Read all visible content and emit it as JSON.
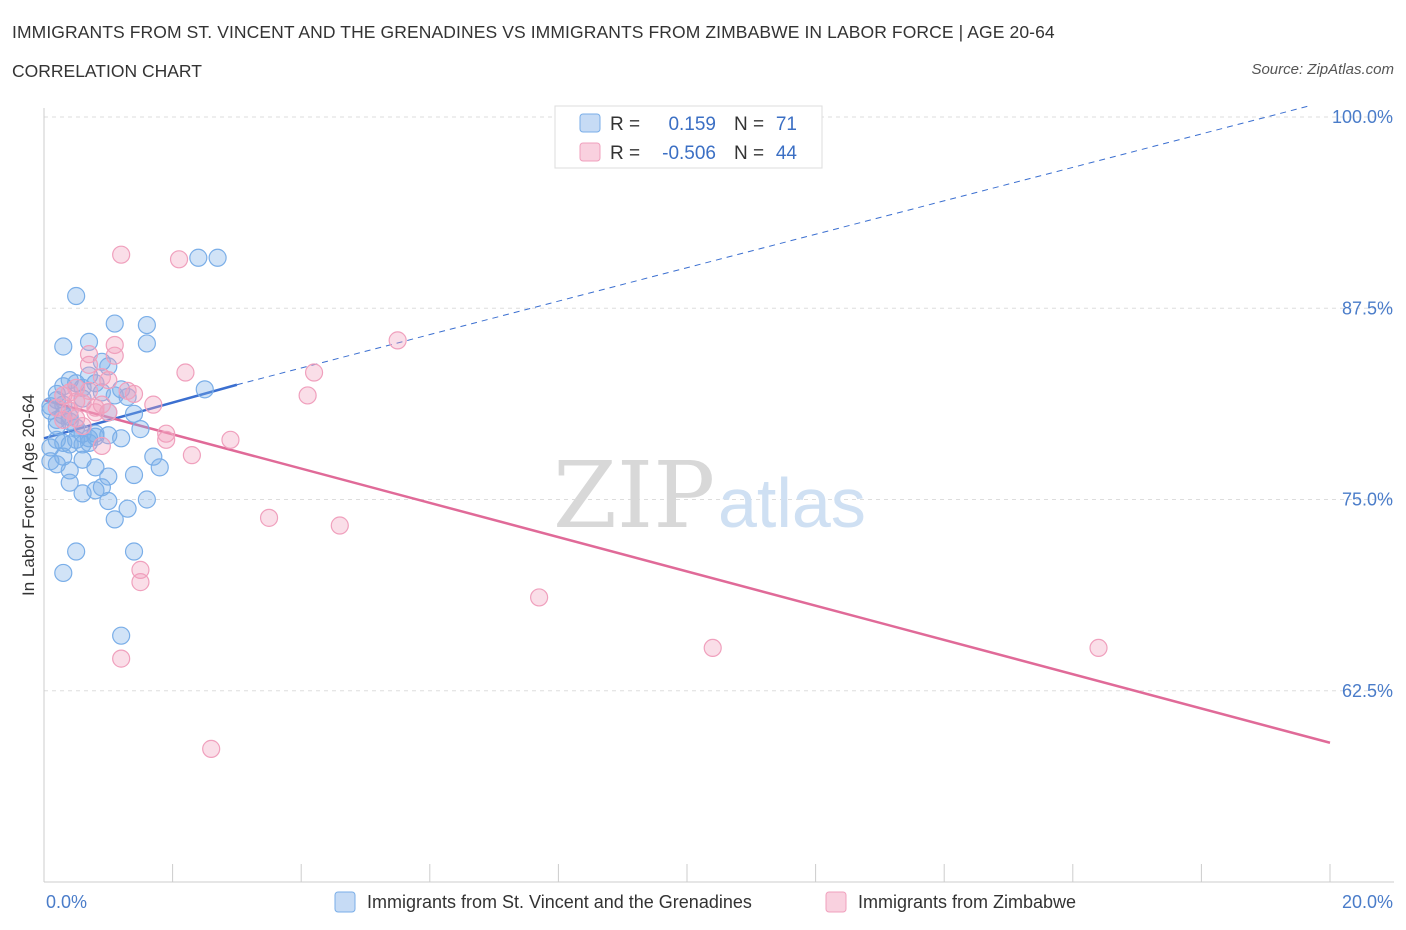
{
  "header": {
    "title": "IMMIGRANTS FROM ST. VINCENT AND THE GRENADINES VS IMMIGRANTS FROM ZIMBABWE IN LABOR FORCE | AGE 20-64",
    "subtitle": "CORRELATION CHART",
    "source": "Source: ZipAtlas.com"
  },
  "watermark": {
    "zip": "ZIP",
    "atlas": "atlas"
  },
  "legend": {
    "rows": [
      {
        "r_label": "R =",
        "r_value": "0.159",
        "n_label": "N =",
        "n_value": "71",
        "color": "#7aaee8"
      },
      {
        "r_label": "R =",
        "r_value": "-0.506",
        "n_label": "N =",
        "n_value": "44",
        "color": "#f0a0bd"
      }
    ]
  },
  "bottom_legend": {
    "items": [
      {
        "label": "Immigrants from St. Vincent and the Grenadines",
        "color": "#7aaee8"
      },
      {
        "label": "Immigrants from Zimbabwe",
        "color": "#f0a0bd"
      }
    ]
  },
  "chart_data": {
    "type": "scatter",
    "title": "IMMIGRANTS FROM ST. VINCENT AND THE GRENADINES VS IMMIGRANTS FROM ZIMBABWE IN LABOR FORCE | AGE 20-64",
    "xlabel": "",
    "ylabel": "In Labor Force | Age 20-64",
    "xlim": [
      0,
      20
    ],
    "ylim": [
      50,
      100
    ],
    "x_tick_labels": [
      "0.0%",
      "20.0%"
    ],
    "y_ticks": [
      62.5,
      75.0,
      87.5,
      100.0
    ],
    "y_tick_labels": [
      "62.5%",
      "75.0%",
      "87.5%",
      "100.0%"
    ],
    "grid": true,
    "series": [
      {
        "name": "Immigrants from St. Vincent and the Grenadines",
        "color": "#7aaee8",
        "line_color": "#3b6fd0",
        "trend": {
          "x0": 0,
          "y0": 79,
          "x1": 3,
          "y1": 82.5,
          "dashed_to_x": 20,
          "dashed_to_y": 101
        },
        "points": [
          [
            0.5,
            88.3
          ],
          [
            0.3,
            85.0
          ],
          [
            0.7,
            85.3
          ],
          [
            1.1,
            86.5
          ],
          [
            1.6,
            86.4
          ],
          [
            1.6,
            85.2
          ],
          [
            2.4,
            90.8
          ],
          [
            2.7,
            90.8
          ],
          [
            2.5,
            82.2
          ],
          [
            0.2,
            81.5
          ],
          [
            0.3,
            82.4
          ],
          [
            0.4,
            82.8
          ],
          [
            0.5,
            82.6
          ],
          [
            0.6,
            82.3
          ],
          [
            0.7,
            83.1
          ],
          [
            0.8,
            82.6
          ],
          [
            0.9,
            84.0
          ],
          [
            1.0,
            83.7
          ],
          [
            1.1,
            81.8
          ],
          [
            1.2,
            82.2
          ],
          [
            1.3,
            81.7
          ],
          [
            0.1,
            80.8
          ],
          [
            0.2,
            80.2
          ],
          [
            0.3,
            80.5
          ],
          [
            0.4,
            80.1
          ],
          [
            0.5,
            79.7
          ],
          [
            0.6,
            79.3
          ],
          [
            0.7,
            79.0
          ],
          [
            0.8,
            79.1
          ],
          [
            1.0,
            79.2
          ],
          [
            1.2,
            79.0
          ],
          [
            1.4,
            80.6
          ],
          [
            1.5,
            79.6
          ],
          [
            0.1,
            78.4
          ],
          [
            0.2,
            78.9
          ],
          [
            0.3,
            78.7
          ],
          [
            0.4,
            78.6
          ],
          [
            0.5,
            78.9
          ],
          [
            0.6,
            78.6
          ],
          [
            0.7,
            78.7
          ],
          [
            0.8,
            79.3
          ],
          [
            0.1,
            77.5
          ],
          [
            0.2,
            77.3
          ],
          [
            0.3,
            77.8
          ],
          [
            0.4,
            76.9
          ],
          [
            0.6,
            77.6
          ],
          [
            0.8,
            77.1
          ],
          [
            1.0,
            76.5
          ],
          [
            1.4,
            76.6
          ],
          [
            1.7,
            77.8
          ],
          [
            1.8,
            77.1
          ],
          [
            0.4,
            76.1
          ],
          [
            0.6,
            75.4
          ],
          [
            0.8,
            75.6
          ],
          [
            0.9,
            75.8
          ],
          [
            1.0,
            74.9
          ],
          [
            1.3,
            74.4
          ],
          [
            1.6,
            75.0
          ],
          [
            1.1,
            73.7
          ],
          [
            0.5,
            71.6
          ],
          [
            1.4,
            71.6
          ],
          [
            0.3,
            70.2
          ],
          [
            1.2,
            66.1
          ],
          [
            0.1,
            81.1
          ],
          [
            0.2,
            81.9
          ],
          [
            0.3,
            81.2
          ],
          [
            0.9,
            82.0
          ],
          [
            1.0,
            80.7
          ],
          [
            0.6,
            81.6
          ],
          [
            0.2,
            79.8
          ],
          [
            0.4,
            80.4
          ]
        ]
      },
      {
        "name": "Immigrants from Zimbabwe",
        "color": "#f0a0bd",
        "line_color": "#e06a98",
        "trend": {
          "x0": 0,
          "y0": 81.5,
          "x1": 20,
          "y1": 59.1
        },
        "points": [
          [
            1.2,
            91.0
          ],
          [
            2.1,
            90.7
          ],
          [
            5.5,
            85.4
          ],
          [
            1.1,
            85.1
          ],
          [
            0.7,
            84.5
          ],
          [
            1.1,
            84.4
          ],
          [
            0.7,
            83.8
          ],
          [
            2.2,
            83.3
          ],
          [
            4.2,
            83.3
          ],
          [
            0.9,
            83.0
          ],
          [
            1.0,
            82.8
          ],
          [
            0.5,
            82.3
          ],
          [
            0.7,
            82.1
          ],
          [
            1.3,
            82.1
          ],
          [
            0.4,
            82.0
          ],
          [
            1.4,
            81.9
          ],
          [
            4.1,
            81.8
          ],
          [
            0.3,
            81.8
          ],
          [
            0.5,
            81.4
          ],
          [
            0.6,
            81.3
          ],
          [
            0.9,
            81.2
          ],
          [
            1.7,
            81.2
          ],
          [
            0.2,
            81.0
          ],
          [
            0.4,
            80.8
          ],
          [
            0.8,
            80.7
          ],
          [
            1.0,
            80.7
          ],
          [
            0.5,
            80.3
          ],
          [
            0.3,
            80.2
          ],
          [
            0.6,
            79.8
          ],
          [
            1.9,
            79.3
          ],
          [
            1.9,
            78.9
          ],
          [
            2.9,
            78.9
          ],
          [
            0.9,
            78.5
          ],
          [
            2.3,
            77.9
          ],
          [
            3.5,
            73.8
          ],
          [
            4.6,
            73.3
          ],
          [
            1.5,
            70.4
          ],
          [
            1.5,
            69.6
          ],
          [
            7.7,
            68.6
          ],
          [
            1.2,
            64.6
          ],
          [
            10.4,
            65.3
          ],
          [
            16.4,
            65.3
          ],
          [
            2.6,
            58.7
          ],
          [
            0.8,
            81.0
          ]
        ]
      }
    ]
  }
}
